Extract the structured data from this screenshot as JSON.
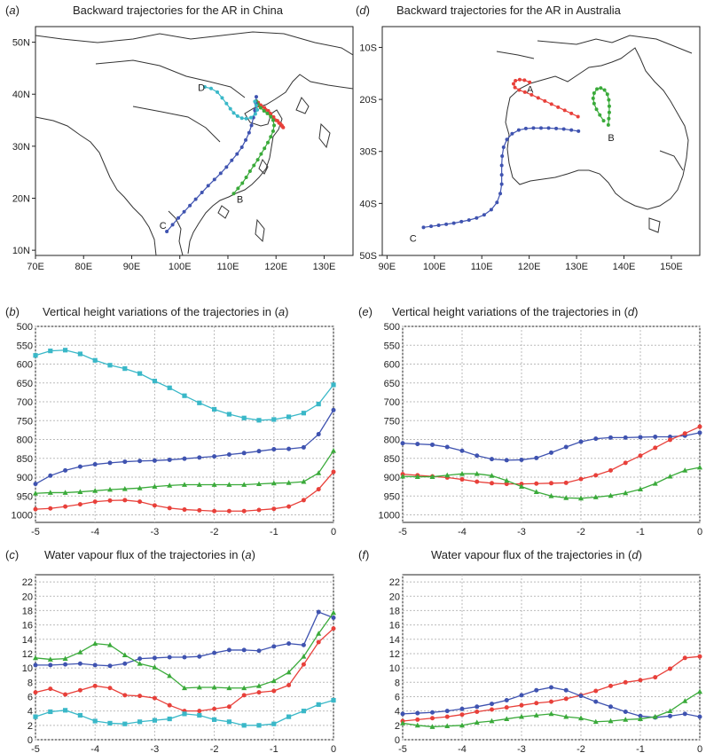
{
  "figure": {
    "panels": [
      {
        "letter": "a",
        "title": "Backward trajectories for the AR in China"
      },
      {
        "letter": "d",
        "title": "Backward trajectories for the AR in Australia"
      },
      {
        "letter": "b",
        "title_pre": "Vertical height variations of the trajectories in (",
        "title_ref": "a",
        "title_post": ")"
      },
      {
        "letter": "e",
        "title_pre": "Vertical height variations of the trajectories in (",
        "title_ref": "d",
        "title_post": ")"
      },
      {
        "letter": "c",
        "title_pre": "Water vapour flux of the trajectories in (",
        "title_ref": "a",
        "title_post": ")"
      },
      {
        "letter": "f",
        "title_pre": "Water vapour flux of the trajectories in (",
        "title_ref": "d",
        "title_post": ")"
      }
    ]
  },
  "colors": {
    "A": "#e8403a",
    "B": "#3aaa3a",
    "C": "#3f53b0",
    "D": "#3ab8c8"
  },
  "chart_data": [
    {
      "id": "a",
      "type": "scatter",
      "x_ticks": [
        "70E",
        "80E",
        "90E",
        "100E",
        "110E",
        "120E",
        "130E"
      ],
      "y_ticks": [
        "10N",
        "20N",
        "30N",
        "40N",
        "50N"
      ],
      "xlim": [
        70,
        136
      ],
      "ylim": [
        9,
        53
      ],
      "labels": [
        {
          "text": "D",
          "lon": 104.5,
          "lat": 41.3
        },
        {
          "text": "B",
          "lon": 112.5,
          "lat": 19.8
        },
        {
          "text": "C",
          "lon": 96.5,
          "lat": 14.8
        }
      ],
      "series": [
        {
          "name": "A",
          "lon": [
            116.1,
            117.0,
            117.9,
            118.8,
            119.5,
            120.3,
            120.9,
            121.3,
            121.5,
            121.2,
            120.6,
            119.9,
            119.4,
            118.9,
            118.4,
            117.6,
            116.8,
            116.3
          ],
          "lat": [
            37.8,
            37.6,
            37.0,
            36.3,
            35.6,
            34.9,
            34.3,
            33.8,
            33.6,
            34.0,
            34.5,
            35.0,
            35.6,
            36.2,
            36.8,
            37.4,
            37.9,
            38.4
          ]
        },
        {
          "name": "B",
          "lon": [
            111.2,
            112.1,
            113.0,
            113.8,
            114.6,
            115.4,
            116.2,
            116.9,
            117.6,
            118.3,
            118.9,
            119.4,
            119.6,
            119.4,
            118.9,
            118.2,
            117.5,
            116.8,
            116.2,
            115.9
          ],
          "lat": [
            20.9,
            21.9,
            22.9,
            24.0,
            25.2,
            26.3,
            27.4,
            28.5,
            29.6,
            30.7,
            31.8,
            32.9,
            34.0,
            35.0,
            35.7,
            36.3,
            36.8,
            37.4,
            38.1,
            38.7
          ]
        },
        {
          "name": "C",
          "lon": [
            97.3,
            98.5,
            99.7,
            100.9,
            102.1,
            103.3,
            104.6,
            105.9,
            107.2,
            108.5,
            109.7,
            110.8,
            111.9,
            112.9,
            113.7,
            114.4,
            114.9,
            115.3,
            115.6,
            115.8,
            115.9
          ],
          "lat": [
            13.6,
            14.9,
            16.2,
            17.4,
            18.6,
            19.8,
            21.1,
            22.4,
            23.6,
            24.8,
            26.0,
            27.3,
            28.5,
            29.8,
            31.2,
            32.6,
            34.0,
            35.5,
            36.9,
            38.3,
            39.5
          ]
        },
        {
          "name": "D",
          "lon": [
            105.2,
            106.5,
            107.8,
            108.8,
            109.7,
            110.5,
            111.2,
            112.0,
            112.9,
            113.8,
            114.8,
            115.7,
            116.1,
            115.9,
            115.6
          ],
          "lat": [
            41.4,
            41.1,
            40.4,
            39.3,
            38.2,
            37.2,
            36.4,
            35.8,
            35.4,
            35.3,
            35.5,
            36.2,
            37.0,
            37.8,
            38.6
          ]
        }
      ]
    },
    {
      "id": "d",
      "type": "scatter",
      "x_ticks": [
        "90E",
        "100E",
        "110E",
        "120E",
        "130E",
        "140E",
        "150E"
      ],
      "y_ticks": [
        "10S",
        "20S",
        "30S",
        "40S",
        "50S"
      ],
      "xlim": [
        89,
        156
      ],
      "ylim": [
        -50,
        -6
      ],
      "labels": [
        {
          "text": "A",
          "lon": 120.2,
          "lat": -18.0
        },
        {
          "text": "B",
          "lon": 137.3,
          "lat": -27.3
        },
        {
          "text": "C",
          "lon": 95.5,
          "lat": -46.7
        }
      ],
      "series": [
        {
          "name": "A",
          "lon": [
            130.3,
            128.9,
            127.5,
            126.1,
            124.7,
            123.3,
            121.9,
            120.5,
            119.1,
            117.9,
            117.0,
            116.7,
            117.1,
            118.0,
            119.0,
            120.1
          ],
          "lat": [
            -23.3,
            -22.7,
            -22.1,
            -21.5,
            -20.9,
            -20.3,
            -19.7,
            -19.1,
            -18.6,
            -18.2,
            -17.7,
            -17.0,
            -16.4,
            -16.2,
            -16.3,
            -16.7
          ]
        },
        {
          "name": "B",
          "lon": [
            135.7,
            134.9,
            134.2,
            133.7,
            133.5,
            133.7,
            134.3,
            135.1,
            135.9,
            136.5,
            136.8,
            136.9,
            136.9,
            136.8,
            136.7
          ],
          "lat": [
            -24.1,
            -23.0,
            -21.9,
            -20.8,
            -19.8,
            -18.8,
            -18.0,
            -17.8,
            -18.2,
            -19.0,
            -20.1,
            -21.3,
            -22.5,
            -23.7,
            -24.9
          ]
        },
        {
          "name": "C",
          "lon": [
            97.7,
            99.3,
            100.9,
            102.5,
            104.1,
            105.7,
            107.3,
            108.9,
            110.5,
            112.0,
            113.2,
            113.9,
            114.2,
            114.2,
            114.2,
            114.3,
            114.6,
            115.3,
            116.4,
            117.8,
            119.3,
            120.9,
            122.5,
            124.1,
            125.7,
            127.3,
            128.9,
            130.4
          ],
          "lat": [
            -44.6,
            -44.4,
            -44.2,
            -44.0,
            -43.8,
            -43.5,
            -43.2,
            -42.8,
            -42.2,
            -41.2,
            -39.8,
            -38.1,
            -36.3,
            -34.5,
            -32.7,
            -30.9,
            -29.2,
            -27.7,
            -26.6,
            -25.9,
            -25.6,
            -25.5,
            -25.5,
            -25.5,
            -25.6,
            -25.7,
            -25.9,
            -26.1
          ]
        }
      ]
    },
    {
      "id": "b",
      "type": "line",
      "x": [
        -5,
        -4.75,
        -4.5,
        -4.25,
        -4,
        -3.75,
        -3.5,
        -3.25,
        -3,
        -2.75,
        -2.5,
        -2.25,
        -2,
        -1.75,
        -1.5,
        -1.25,
        -1,
        -0.75,
        -0.5,
        -0.25,
        0
      ],
      "x_ticks": [
        "-5",
        "-4",
        "-3",
        "-2",
        "-1",
        "0"
      ],
      "y_ticks": [
        "500",
        "550",
        "600",
        "650",
        "700",
        "750",
        "800",
        "850",
        "900",
        "950",
        "1000"
      ],
      "ylim": [
        1020,
        500
      ],
      "xlim": [
        -5,
        0
      ],
      "grid": true,
      "series": [
        {
          "name": "D",
          "values": [
            577,
            565,
            563,
            573,
            590,
            603,
            612,
            625,
            645,
            663,
            684,
            703,
            720,
            733,
            743,
            749,
            747,
            740,
            730,
            706,
            655
          ]
        },
        {
          "name": "C",
          "values": [
            918,
            896,
            882,
            872,
            866,
            862,
            859,
            857,
            856,
            854,
            851,
            848,
            845,
            840,
            836,
            831,
            826,
            825,
            821,
            786,
            722
          ]
        },
        {
          "name": "B",
          "values": [
            943,
            941,
            941,
            939,
            936,
            933,
            931,
            929,
            925,
            922,
            920,
            920,
            920,
            920,
            920,
            918,
            916,
            915,
            912,
            889,
            830
          ]
        },
        {
          "name": "A",
          "values": [
            985,
            983,
            978,
            972,
            965,
            962,
            961,
            965,
            975,
            982,
            986,
            988,
            990,
            990,
            990,
            987,
            984,
            978,
            961,
            932,
            886
          ]
        }
      ]
    },
    {
      "id": "e",
      "type": "line",
      "x": [
        -5,
        -4.75,
        -4.5,
        -4.25,
        -4,
        -3.75,
        -3.5,
        -3.25,
        -3,
        -2.75,
        -2.5,
        -2.25,
        -2,
        -1.75,
        -1.5,
        -1.25,
        -1,
        -0.75,
        -0.5,
        -0.25,
        0
      ],
      "x_ticks": [
        "-5",
        "-4",
        "-3",
        "-2",
        "-1",
        "0"
      ],
      "y_ticks": [
        "500",
        "550",
        "600",
        "650",
        "700",
        "750",
        "800",
        "850",
        "900",
        "950",
        "1000"
      ],
      "ylim": [
        1020,
        500
      ],
      "xlim": [
        -5,
        0
      ],
      "grid": true,
      "series": [
        {
          "name": "C",
          "values": [
            810,
            812,
            814,
            820,
            830,
            843,
            852,
            855,
            854,
            849,
            835,
            820,
            806,
            798,
            795,
            795,
            794,
            793,
            793,
            790,
            782
          ]
        },
        {
          "name": "A",
          "values": [
            892,
            895,
            898,
            901,
            906,
            912,
            916,
            918,
            918,
            917,
            916,
            915,
            905,
            895,
            882,
            862,
            843,
            822,
            801,
            784,
            766
          ]
        },
        {
          "name": "B",
          "values": [
            898,
            899,
            899,
            895,
            891,
            891,
            896,
            909,
            925,
            939,
            950,
            955,
            956,
            953,
            949,
            942,
            932,
            917,
            898,
            882,
            874
          ]
        }
      ]
    },
    {
      "id": "c",
      "type": "line",
      "x": [
        -5,
        -4.75,
        -4.5,
        -4.25,
        -4,
        -3.75,
        -3.5,
        -3.25,
        -3,
        -2.75,
        -2.5,
        -2.25,
        -2,
        -1.75,
        -1.5,
        -1.25,
        -1,
        -0.75,
        -0.5,
        -0.25,
        0
      ],
      "x_ticks": [
        "-5",
        "-4",
        "-3",
        "-2",
        "-1",
        "0"
      ],
      "y_ticks": [
        "0",
        "2",
        "4",
        "6",
        "8",
        "10",
        "12",
        "14",
        "16",
        "18",
        "20",
        "22"
      ],
      "ylim": [
        0,
        23
      ],
      "xlim": [
        -5,
        0
      ],
      "grid": true,
      "series": [
        {
          "name": "C",
          "values": [
            10.4,
            10.4,
            10.5,
            10.6,
            10.4,
            10.3,
            10.6,
            11.3,
            11.4,
            11.5,
            11.5,
            11.6,
            12.1,
            12.5,
            12.5,
            12.4,
            13.0,
            13.4,
            13.2,
            17.8,
            17.0
          ]
        },
        {
          "name": "B",
          "values": [
            11.4,
            11.2,
            11.3,
            12.2,
            13.4,
            13.2,
            11.8,
            10.6,
            10.1,
            8.9,
            7.2,
            7.3,
            7.3,
            7.2,
            7.2,
            7.5,
            8.2,
            9.4,
            11.6,
            14.8,
            17.7
          ]
        },
        {
          "name": "A",
          "values": [
            6.6,
            7.1,
            6.3,
            6.9,
            7.5,
            7.2,
            6.2,
            6.1,
            5.8,
            4.8,
            4.0,
            4.0,
            4.3,
            4.6,
            6.2,
            6.6,
            6.8,
            7.6,
            10.5,
            13.6,
            15.5
          ]
        },
        {
          "name": "D",
          "values": [
            3.2,
            3.9,
            4.1,
            3.4,
            2.6,
            2.3,
            2.2,
            2.5,
            2.7,
            2.9,
            3.6,
            3.4,
            2.8,
            2.5,
            2.0,
            2.0,
            2.2,
            3.2,
            4.0,
            4.9,
            5.5
          ]
        }
      ]
    },
    {
      "id": "f",
      "type": "line",
      "x": [
        -5,
        -4.75,
        -4.5,
        -4.25,
        -4,
        -3.75,
        -3.5,
        -3.25,
        -3,
        -2.75,
        -2.5,
        -2.25,
        -2,
        -1.75,
        -1.5,
        -1.25,
        -1,
        -0.75,
        -0.5,
        -0.25,
        0
      ],
      "x_ticks": [
        "-5",
        "-4",
        "-3",
        "-2",
        "-1",
        "0"
      ],
      "y_ticks": [
        "0",
        "2",
        "4",
        "6",
        "8",
        "10",
        "12",
        "14",
        "16",
        "18",
        "20",
        "22"
      ],
      "ylim": [
        0,
        23
      ],
      "xlim": [
        -5,
        0
      ],
      "grid": true,
      "series": [
        {
          "name": "A",
          "values": [
            2.6,
            2.8,
            3.0,
            3.2,
            3.5,
            3.9,
            4.2,
            4.5,
            4.8,
            5.1,
            5.3,
            5.7,
            6.2,
            6.8,
            7.5,
            8.0,
            8.3,
            8.7,
            9.9,
            11.4,
            11.6
          ]
        },
        {
          "name": "C",
          "values": [
            3.6,
            3.7,
            3.8,
            4.0,
            4.3,
            4.6,
            5.0,
            5.5,
            6.2,
            6.9,
            7.3,
            6.9,
            6.1,
            5.3,
            4.6,
            3.9,
            3.3,
            3.1,
            3.3,
            3.6,
            3.2
          ]
        },
        {
          "name": "B",
          "values": [
            2.3,
            2.0,
            1.8,
            1.9,
            2.0,
            2.4,
            2.6,
            2.9,
            3.2,
            3.4,
            3.6,
            3.2,
            3.0,
            2.5,
            2.6,
            2.8,
            2.9,
            3.2,
            4.0,
            5.4,
            6.7
          ]
        }
      ]
    }
  ]
}
